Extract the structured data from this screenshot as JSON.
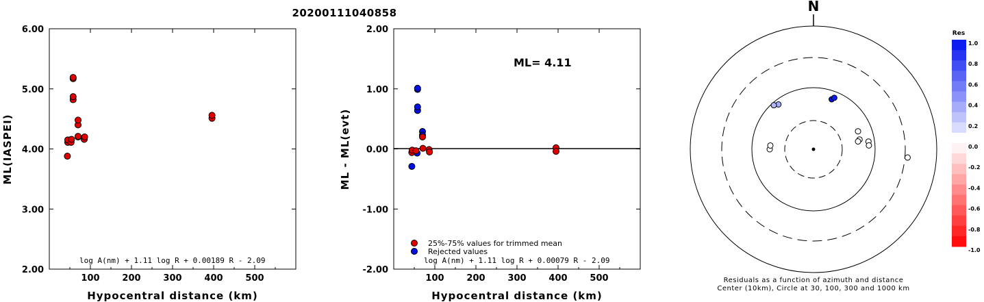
{
  "title": "20200111040858",
  "chart_data": [
    {
      "type": "scatter",
      "xlabel": "Hypocentral distance (km)",
      "ylabel": "ML(IASPEI)",
      "xlim": [
        0,
        600
      ],
      "ylim": [
        2.0,
        6.0
      ],
      "xticks": [
        100,
        200,
        300,
        400,
        500
      ],
      "yticks": [
        "2.00",
        "3.00",
        "4.00",
        "5.00",
        "6.00"
      ],
      "formula": "log A(nm) + 1.11 log R + 0.00189 R - 2.09",
      "series": [
        {
          "color": "#e00000",
          "points": [
            [
              44,
              3.88
            ],
            [
              45,
              4.11
            ],
            [
              45,
              4.15
            ],
            [
              53,
              4.11
            ],
            [
              54,
              4.16
            ],
            [
              58,
              5.17
            ],
            [
              58,
              5.19
            ],
            [
              58,
              4.82
            ],
            [
              58,
              4.87
            ],
            [
              70,
              4.4
            ],
            [
              70,
              4.48
            ],
            [
              70,
              4.2
            ],
            [
              70,
              4.21
            ],
            [
              85,
              4.16
            ],
            [
              86,
              4.2
            ],
            [
              396,
              4.51
            ],
            [
              396,
              4.56
            ]
          ]
        }
      ]
    },
    {
      "type": "scatter",
      "xlabel": "Hypocentral distance (km)",
      "ylabel": "ML - ML(evt)",
      "xlim": [
        0,
        600
      ],
      "ylim": [
        -2.0,
        2.0
      ],
      "xticks": [
        100,
        200,
        300,
        400,
        500
      ],
      "yticks": [
        "-2.00",
        "-1.00",
        "0.00",
        "1.00",
        "2.00"
      ],
      "annotation": "ML= 4.11",
      "formula": "log A(nm) + 1.11 log R + 0.00079 R - 2.09",
      "legend": [
        {
          "label": "25%-75% values for trimmed mean",
          "color": "#e00000"
        },
        {
          "label": "Rejected values",
          "color": "#0010e0"
        }
      ],
      "series": [
        {
          "color": "#0010e0",
          "points": [
            [
              44,
              -0.29
            ],
            [
              57,
              -0.07
            ],
            [
              58,
              0.99
            ],
            [
              58,
              1.01
            ],
            [
              58,
              0.64
            ],
            [
              58,
              0.7
            ],
            [
              70,
              0.29
            ],
            [
              70,
              0.23
            ]
          ]
        },
        {
          "color": "#e00000",
          "points": [
            [
              44,
              -0.06
            ],
            [
              45,
              -0.02
            ],
            [
              54,
              -0.03
            ],
            [
              70,
              0.2
            ],
            [
              71,
              0.01
            ],
            [
              86,
              -0.01
            ],
            [
              87,
              -0.05
            ],
            [
              395,
              0.02
            ],
            [
              395,
              -0.04
            ]
          ]
        }
      ]
    }
  ],
  "polar": {
    "north_label": "N",
    "caption1": "Residuals as a function of azimuth and distance",
    "caption2": "Center (10km), Circle at 30, 100, 300 and 1000 km",
    "colorbar_title": "Res",
    "colorbar_ticks": [
      "1.0",
      "0.8",
      "0.6",
      "0.4",
      "0.2",
      "0.0",
      "-0.2",
      "-0.4",
      "-0.6",
      "-0.8",
      "-1.0"
    ],
    "stations": [
      {
        "az": 322,
        "dist": 90,
        "res": 0.35
      },
      {
        "az": 318,
        "dist": 95,
        "res": 0.3
      },
      {
        "az": 270,
        "dist": 62,
        "res": 0.0
      },
      {
        "az": 275,
        "dist": 61,
        "res": 0.0
      },
      {
        "az": 20,
        "dist": 82,
        "res": 1.0
      },
      {
        "az": 22,
        "dist": 87,
        "res": 0.95
      },
      {
        "az": 68,
        "dist": 71,
        "res": 0.0
      },
      {
        "az": 78,
        "dist": 69,
        "res": 0.0
      },
      {
        "az": 80,
        "dist": 65,
        "res": 0.0
      },
      {
        "az": 82,
        "dist": 87,
        "res": 0.0
      },
      {
        "az": 86,
        "dist": 87,
        "res": 0.0
      },
      {
        "az": 95,
        "dist": 360,
        "res": 0.0
      }
    ]
  }
}
